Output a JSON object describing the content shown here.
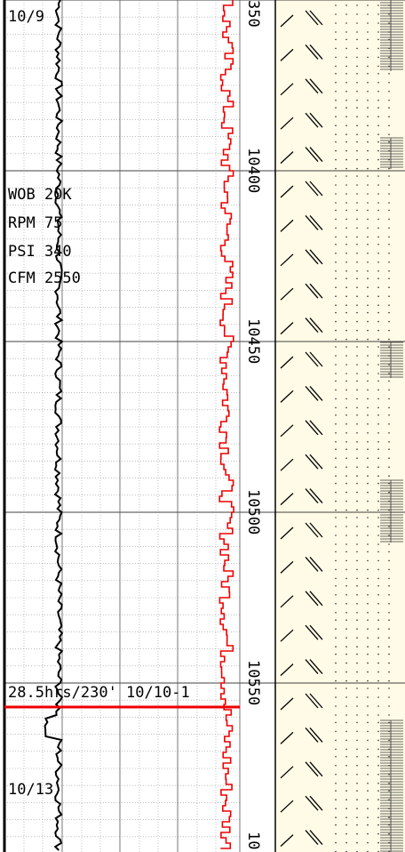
{
  "dates": {
    "top": "10/9",
    "bottom": "10/13"
  },
  "parameters": [
    "WOB 20K",
    "RPM 75",
    "PSI 340",
    "CFM 2550"
  ],
  "bit_run": "28.5hrs/230' 10/10-1",
  "depth_labels": [
    "350",
    "10400",
    "10450",
    "10500",
    "10550",
    "10"
  ]
}
